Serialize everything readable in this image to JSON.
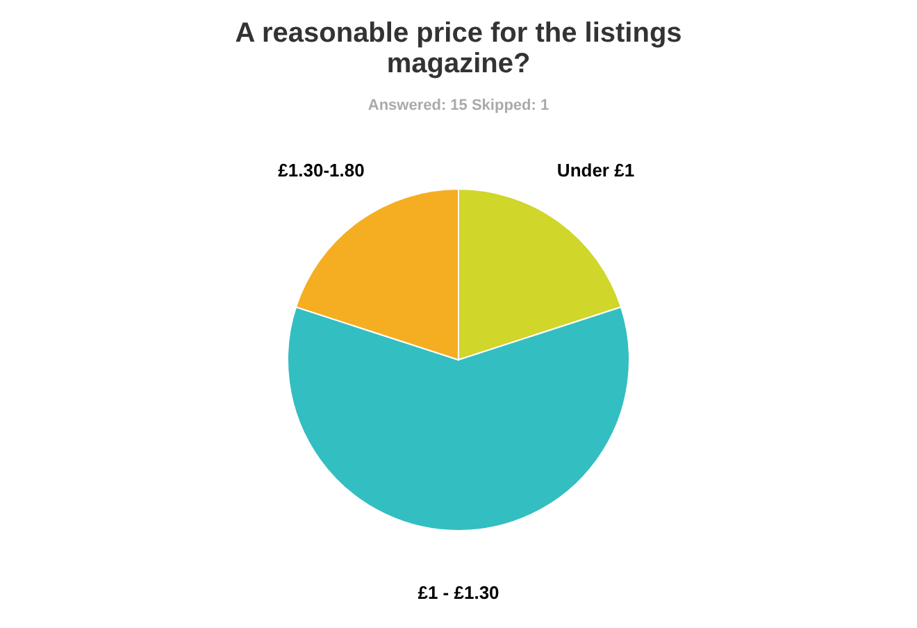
{
  "chart_data": {
    "type": "pie",
    "title": [
      "A reasonable price for the listings",
      "magazine?"
    ],
    "subtitle": "Answered: 15    Skipped: 1",
    "categories": [
      "Under £1",
      "£1 - £1.30",
      "£1.30-1.80"
    ],
    "values": [
      20,
      60,
      20
    ],
    "colors": [
      "#d0d62a",
      "#33bec1",
      "#f5ae21"
    ],
    "legend": false
  }
}
